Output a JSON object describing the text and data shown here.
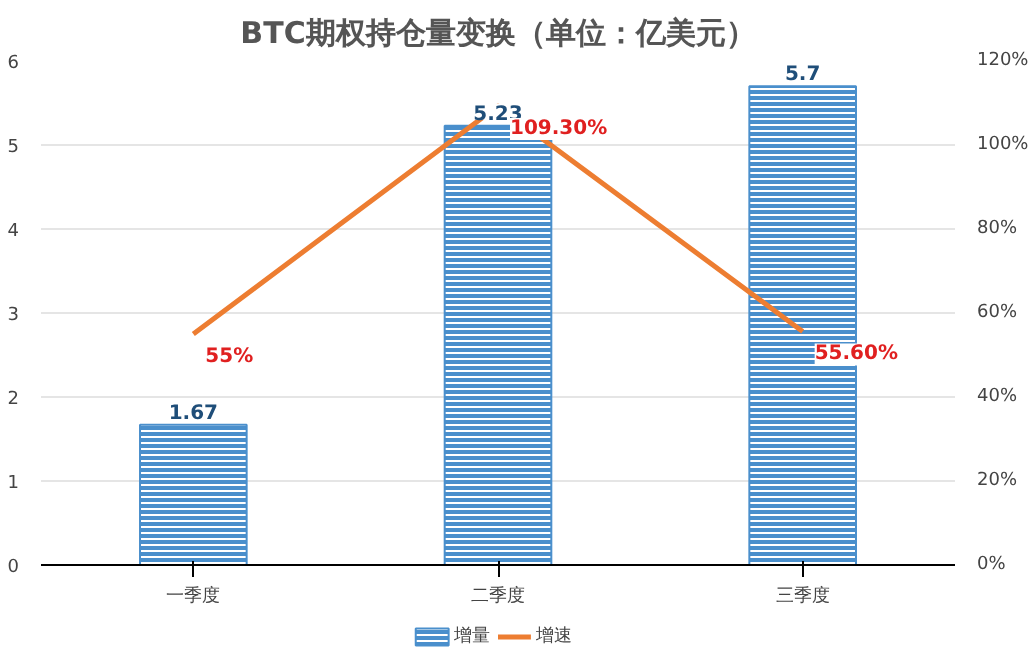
{
  "chart_data": {
    "type": "bar",
    "title": "BTC期权持仓量变换（单位：亿美元）",
    "categories": [
      "一季度",
      "二季度",
      "三季度"
    ],
    "series": [
      {
        "name": "增量",
        "color": "#4a8fcc",
        "values": [
          1.67,
          5.23,
          5.7
        ],
        "value_labels": [
          "1.67",
          "5.23",
          "5.7"
        ]
      },
      {
        "name": "增速",
        "type": "line",
        "axis": "y2",
        "color": "#ed7d31",
        "values": [
          55,
          109.3,
          55.6
        ],
        "value_labels": [
          "55%",
          "109.30%",
          "55.60%"
        ]
      }
    ],
    "ylim": [
      0,
      6
    ],
    "yticks": [
      0,
      1,
      2,
      3,
      4,
      5,
      6
    ],
    "y2lim": [
      0,
      120
    ],
    "y2ticks": [
      {
        "value": 0,
        "label": "0%"
      },
      {
        "value": 20,
        "label": "20%"
      },
      {
        "value": 40,
        "label": "40%"
      },
      {
        "value": 60,
        "label": "60%"
      },
      {
        "value": 80,
        "label": "80%"
      },
      {
        "value": 100,
        "label": "100%"
      },
      {
        "value": 120,
        "label": "120%"
      }
    ],
    "grid": "y",
    "legend": "bottom",
    "marker": "none"
  }
}
